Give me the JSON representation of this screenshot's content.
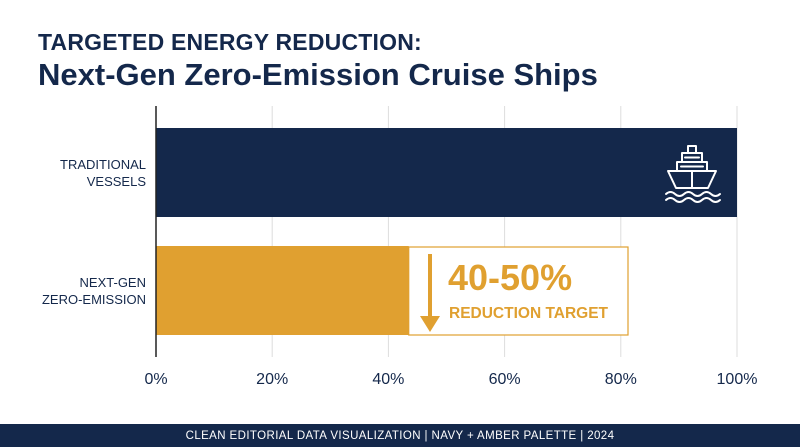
{
  "header": {
    "kicker": "TARGETED ENERGY REDUCTION:",
    "title": "Next-Gen Zero-Emission Cruise Ships"
  },
  "chart_data": {
    "type": "bar",
    "orientation": "horizontal",
    "categories": [
      "TRADITIONAL VESSELS",
      "NEXT-GEN ZERO-EMISSION"
    ],
    "category_lines": [
      [
        "TRADITIONAL",
        "VESSELS"
      ],
      [
        "NEXT-GEN",
        "ZERO-EMISSION"
      ]
    ],
    "values": [
      100,
      43.5
    ],
    "xlim": [
      0,
      100
    ],
    "ticks": [
      0,
      20,
      40,
      60,
      80,
      100
    ],
    "tick_labels": [
      "0%",
      "20%",
      "40%",
      "60%",
      "80%",
      "100%"
    ],
    "grid": true,
    "legend": "none",
    "colors": {
      "traditional": "#14284b",
      "next_gen": "#e0a030",
      "axis": "#222222",
      "grid": "#dddddd"
    },
    "annotation": {
      "value": "40-50%",
      "label": "REDUCTION TARGET",
      "arrow": "down",
      "color": "#e0a030"
    },
    "icons": [
      "cruise-ship-icon"
    ]
  },
  "footer": {
    "text": "CLEAN EDITORIAL DATA VISUALIZATION  |  NAVY + AMBER PALETTE  |  2024"
  }
}
